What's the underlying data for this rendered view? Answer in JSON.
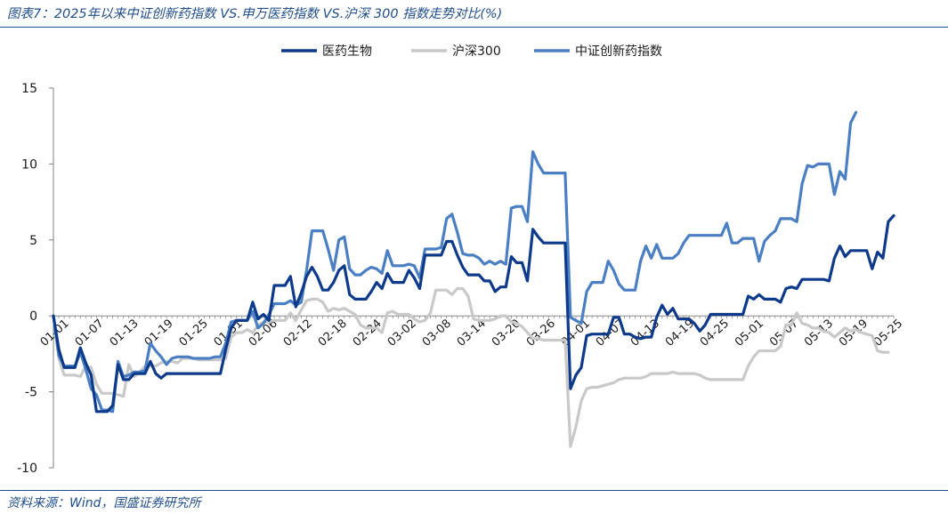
{
  "title": "图表7：2025年以来中证创新药指数 VS.申万医药指数 VS.沪深 300 指数走势对比(%)",
  "source": "资料来源：Wind，国盛证券研究所",
  "chart_data": {
    "type": "line",
    "ylim": [
      -10,
      15
    ],
    "yticks": [
      -10,
      -5,
      0,
      5,
      10,
      15
    ],
    "grid": false,
    "legend_position": "top-center",
    "x_tick_labels": [
      "01-01",
      "01-07",
      "01-13",
      "01-19",
      "01-25",
      "01-31",
      "02-06",
      "02-12",
      "02-18",
      "02-24",
      "03-02",
      "03-08",
      "03-14",
      "03-20",
      "03-26",
      "04-01",
      "04-07",
      "04-13",
      "04-19",
      "04-25",
      "05-01",
      "05-07",
      "05-13",
      "05-19",
      "05-25"
    ],
    "series": [
      {
        "name": "医药生物",
        "color": "#0d3a8a",
        "values": [
          0,
          -2.2,
          -3.4,
          -3.4,
          -3.4,
          -2.1,
          -3.1,
          -3.9,
          -6.3,
          -6.3,
          -6.3,
          -5.9,
          -3.2,
          -4.2,
          -4.2,
          -3.8,
          -3.8,
          -3.8,
          -3.0,
          -3.8,
          -4.1,
          -3.8,
          -3.8,
          -3.8,
          -3.8,
          -3.8,
          -3.8,
          -3.8,
          -3.8,
          -3.8,
          -3.8,
          -3.8,
          -2.2,
          -0.8,
          -0.3,
          -0.3,
          -0.3,
          0.9,
          -0.2,
          0.1,
          -0.3,
          2.0,
          2.0,
          2.0,
          2.6,
          0.6,
          1.5,
          2.6,
          3.2,
          2.6,
          1.7,
          1.7,
          2.2,
          3.0,
          3.3,
          1.4,
          1.1,
          1.1,
          1.1,
          1.6,
          2.2,
          1.8,
          2.8,
          2.2,
          2.2,
          2.2,
          3.0,
          2.5,
          1.8,
          4.0,
          4.0,
          4.0,
          4.0,
          4.9,
          4.9,
          4.0,
          3.2,
          2.7,
          2.7,
          2.7,
          2.3,
          2.3,
          1.6,
          1.9,
          1.9,
          3.9,
          3.5,
          3.5,
          2.3,
          5.7,
          5.2,
          4.8,
          4.8,
          4.8,
          4.8,
          4.8,
          -4.8,
          -3.9,
          -3.4,
          -1.3,
          -1.2,
          -1.2,
          -1.2,
          -1.2,
          -0.1,
          -0.1,
          -1.2,
          -1.2,
          -1.4,
          -1.5,
          -1.4,
          -1.4,
          -0.1,
          0.7,
          0.1,
          0.5,
          -0.2,
          -0.2,
          -0.2,
          -0.5,
          -1.0,
          -0.6,
          0.1,
          0.1,
          0.1,
          0.1,
          0.1,
          0.1,
          0.1,
          1.3,
          1.1,
          1.4,
          1.1,
          1.1,
          1.1,
          0.9,
          1.8,
          1.9,
          1.8,
          2.4,
          2.4,
          2.4,
          2.4,
          2.4,
          2.3,
          3.8,
          4.6,
          3.9,
          4.3,
          4.3,
          4.3,
          4.3,
          3.1,
          4.2,
          3.8,
          6.2,
          6.6
        ]
      },
      {
        "name": "沪深300",
        "color": "#c9c9c9",
        "values": [
          0,
          -2.8,
          -3.9,
          -3.9,
          -3.9,
          -4.0,
          -3.3,
          -3.4,
          -4.5,
          -5.1,
          -5.1,
          -5.1,
          -5.2,
          -5.3,
          -3.2,
          -4.0,
          -3.7,
          -3.3,
          -3.3,
          -3.3,
          -3.1,
          -3.0,
          -3.0,
          -3.1,
          -2.8,
          -2.8,
          -2.8,
          -2.9,
          -2.9,
          -2.9,
          -2.9,
          -2.9,
          -2.8,
          -1.4,
          -1.1,
          -1.1,
          -0.9,
          -1.1,
          -0.6,
          -0.4,
          -0.4,
          -0.3,
          -0.3,
          -0.3,
          0.2,
          -0.3,
          0.4,
          1.0,
          1.1,
          1.1,
          0.9,
          0.3,
          0.5,
          0.4,
          0.5,
          0.3,
          0.1,
          -0.6,
          -0.8,
          -0.8,
          -0.8,
          -1.1,
          0.2,
          0.3,
          0.1,
          0.1,
          0.1,
          -0.2,
          -0.4,
          -0.3,
          0.2,
          1.7,
          1.7,
          1.7,
          1.4,
          1.8,
          1.8,
          1.3,
          -0.2,
          -0.3,
          -0.3,
          -0.3,
          -0.2,
          0.0,
          0.0,
          -0.4,
          -0.5,
          -0.7,
          -1.1,
          -1.5,
          -1.5,
          -1.6,
          -1.6,
          -1.6,
          -1.6,
          -1.6,
          -8.6,
          -7.3,
          -5.6,
          -4.8,
          -4.7,
          -4.7,
          -4.6,
          -4.5,
          -4.4,
          -4.2,
          -4.1,
          -4.1,
          -4.1,
          -4.1,
          -4.0,
          -3.8,
          -3.8,
          -3.8,
          -3.8,
          -3.7,
          -3.8,
          -3.8,
          -3.8,
          -3.8,
          -3.9,
          -4.1,
          -4.2,
          -4.2,
          -4.2,
          -4.2,
          -4.2,
          -4.2,
          -4.2,
          -3.3,
          -2.7,
          -2.3,
          -2.3,
          -2.3,
          -2.3,
          -2.0,
          -0.6,
          -0.6,
          0.2,
          -0.5,
          -0.6,
          -0.8,
          -0.8,
          -1.0,
          -1.1,
          -1.4,
          -1.1,
          -0.8,
          -1.0,
          -0.9,
          -1.1,
          -1.2,
          -1.3,
          -2.3,
          -2.4,
          -2.4
        ]
      },
      {
        "name": "中证创新药指数",
        "color": "#4a7fc4",
        "values": [
          0,
          -2.6,
          -3.3,
          -3.3,
          -3.3,
          -2.4,
          -3.5,
          -4.8,
          -5.2,
          -6.2,
          -6.2,
          -6.3,
          -3.0,
          -4.0,
          -3.9,
          -3.7,
          -3.7,
          -3.6,
          -1.8,
          -2.3,
          -2.7,
          -3.2,
          -2.8,
          -2.7,
          -2.7,
          -2.7,
          -2.8,
          -2.8,
          -2.8,
          -2.8,
          -2.7,
          -2.7,
          -1.8,
          -0.4,
          -0.3,
          -0.3,
          -0.3,
          0.3,
          -0.8,
          -0.5,
          0.1,
          0.8,
          0.8,
          0.8,
          1.0,
          0.7,
          0.9,
          3.0,
          5.6,
          5.6,
          5.6,
          4.4,
          3.0,
          5.0,
          5.2,
          3.1,
          2.7,
          2.7,
          3.0,
          3.2,
          3.1,
          2.8,
          4.3,
          3.3,
          3.3,
          3.3,
          3.4,
          3.3,
          2.5,
          4.4,
          4.4,
          4.4,
          4.5,
          6.4,
          6.7,
          5.5,
          4.1,
          4.0,
          4.0,
          3.8,
          3.4,
          3.6,
          3.4,
          3.6,
          3.4,
          7.1,
          7.2,
          7.2,
          6.2,
          10.8,
          10.0,
          9.4,
          9.4,
          9.4,
          9.4,
          9.4,
          -0.1,
          -0.3,
          -0.5,
          1.6,
          2.2,
          2.2,
          2.2,
          3.6,
          3.0,
          2.1,
          1.7,
          1.7,
          1.7,
          3.6,
          4.6,
          3.8,
          4.7,
          3.8,
          3.8,
          3.8,
          4.1,
          4.8,
          5.3,
          5.3,
          5.3,
          5.3,
          5.3,
          5.3,
          5.3,
          6.1,
          4.8,
          4.8,
          5.1,
          5.1,
          5.1,
          3.6,
          4.9,
          5.3,
          5.6,
          6.4,
          6.4,
          6.4,
          6.2,
          8.7,
          9.9,
          9.8,
          10.0,
          10.0,
          10.0,
          8.0,
          9.5,
          9.0,
          12.7,
          13.4
        ]
      }
    ]
  }
}
